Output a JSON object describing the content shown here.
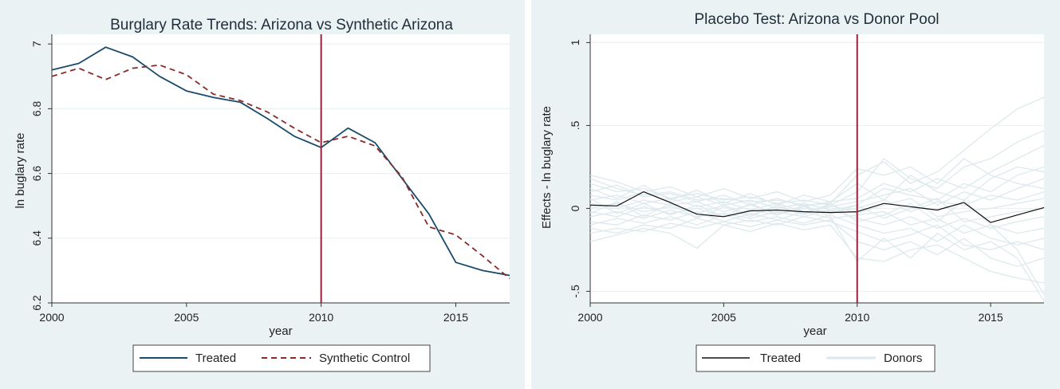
{
  "chart_data": [
    {
      "type": "line",
      "title": "Burglary Rate Trends: Arizona vs Synthetic Arizona",
      "xlabel": "year",
      "ylabel": "ln buglary rate",
      "xlim": [
        2000,
        2017
      ],
      "ylim": [
        6.2,
        7.03
      ],
      "xticks": [
        2000,
        2005,
        2010,
        2015
      ],
      "yticks": [
        6.2,
        6.4,
        6.6,
        6.8,
        7
      ],
      "ytick_labels": [
        "6.2",
        "6.4",
        "6.6",
        "6.8",
        "7"
      ],
      "grid": true,
      "vline": 2010,
      "legend_position": "bottom",
      "x": [
        2000,
        2001,
        2002,
        2003,
        2004,
        2005,
        2006,
        2007,
        2008,
        2009,
        2010,
        2011,
        2012,
        2013,
        2014,
        2015,
        2016,
        2017
      ],
      "series": [
        {
          "name": "Treated",
          "style": "solid",
          "color": "#1a4a6b",
          "values": [
            6.92,
            6.94,
            6.99,
            6.96,
            6.9,
            6.855,
            6.835,
            6.82,
            6.77,
            6.715,
            6.68,
            6.74,
            6.695,
            6.585,
            6.475,
            6.325,
            6.3,
            6.285
          ]
        },
        {
          "name": "Synthetic Control",
          "style": "dashed",
          "color": "#8b2a2a",
          "values": [
            6.9,
            6.925,
            6.89,
            6.925,
            6.935,
            6.905,
            6.845,
            6.825,
            6.79,
            6.74,
            6.695,
            6.715,
            6.685,
            6.59,
            6.435,
            6.41,
            6.345,
            6.275
          ]
        }
      ]
    },
    {
      "type": "line",
      "title": "Placebo Test: Arizona vs Donor Pool",
      "xlabel": "year",
      "ylabel": "Effects - ln buglary rate",
      "xlim": [
        2000,
        2017
      ],
      "ylim": [
        -0.57,
        1.05
      ],
      "xticks": [
        2000,
        2005,
        2010,
        2015
      ],
      "yticks": [
        -0.5,
        0,
        0.5,
        1
      ],
      "ytick_labels": [
        "-.5",
        "0",
        ".5",
        "1"
      ],
      "grid": true,
      "vline": 2010,
      "legend_position": "bottom",
      "x": [
        2000,
        2001,
        2002,
        2003,
        2004,
        2005,
        2006,
        2007,
        2008,
        2009,
        2010,
        2011,
        2012,
        2013,
        2014,
        2015,
        2016,
        2017
      ],
      "series": [
        {
          "name": "Treated",
          "style": "solid",
          "color": "#111111",
          "values": [
            0.02,
            0.015,
            0.1,
            0.035,
            -0.035,
            -0.05,
            -0.015,
            -0.01,
            -0.02,
            -0.025,
            -0.02,
            0.03,
            0.01,
            -0.01,
            0.035,
            -0.085,
            -0.04,
            0.005
          ]
        },
        {
          "name": "Donors",
          "style": "solid",
          "color": "#dde9ec",
          "lines": [
            [
              0.18,
              0.12,
              0.08,
              0.1,
              0.05,
              0.06,
              0.04,
              0.05,
              0.02,
              0.03,
              0.2,
              0.28,
              0.15,
              0.22,
              0.35,
              0.48,
              0.6,
              0.67
            ],
            [
              0.15,
              0.1,
              0.12,
              0.06,
              0.09,
              0.05,
              0.07,
              0.03,
              0.05,
              0.02,
              0.1,
              0.3,
              0.18,
              0.12,
              0.25,
              0.3,
              0.4,
              0.47
            ],
            [
              0.1,
              0.14,
              0.07,
              0.09,
              0.04,
              0.08,
              0.02,
              0.06,
              0.01,
              0.04,
              0.06,
              0.15,
              0.1,
              0.18,
              0.12,
              0.22,
              0.3,
              0.38
            ],
            [
              0.08,
              0.05,
              0.1,
              0.04,
              0.07,
              0.02,
              0.05,
              0.0,
              0.03,
              -0.01,
              0.02,
              0.12,
              0.08,
              0.05,
              0.15,
              0.1,
              0.2,
              0.25
            ],
            [
              0.05,
              0.08,
              0.03,
              0.06,
              0.01,
              0.04,
              -0.01,
              0.03,
              -0.02,
              0.01,
              0.04,
              0.08,
              0.12,
              0.02,
              0.1,
              0.05,
              0.12,
              0.18
            ],
            [
              0.03,
              0.0,
              0.05,
              0.02,
              0.04,
              -0.02,
              0.02,
              -0.03,
              0.0,
              -0.02,
              0.0,
              0.05,
              -0.02,
              0.04,
              0.02,
              0.08,
              0.05,
              0.1
            ],
            [
              0.0,
              0.03,
              -0.02,
              0.01,
              -0.03,
              0.02,
              -0.04,
              0.01,
              -0.03,
              0.02,
              -0.03,
              0.02,
              0.06,
              -0.05,
              -0.02,
              0.0,
              0.03,
              0.06
            ],
            [
              -0.02,
              -0.05,
              0.01,
              -0.03,
              0.0,
              -0.05,
              -0.01,
              -0.04,
              0.01,
              -0.03,
              0.02,
              -0.06,
              0.0,
              0.06,
              -0.08,
              -0.05,
              -0.02,
              0.0
            ],
            [
              -0.05,
              -0.02,
              -0.06,
              -0.01,
              -0.05,
              -0.03,
              -0.06,
              -0.02,
              -0.05,
              -0.01,
              -0.06,
              -0.1,
              -0.05,
              -0.12,
              -0.06,
              -0.12,
              -0.08,
              -0.05
            ],
            [
              -0.08,
              -0.1,
              -0.04,
              -0.07,
              -0.02,
              -0.08,
              -0.03,
              -0.07,
              -0.02,
              -0.06,
              -0.04,
              -0.02,
              -0.1,
              -0.06,
              -0.15,
              -0.1,
              -0.15,
              -0.12
            ],
            [
              -0.1,
              -0.06,
              -0.09,
              -0.05,
              -0.1,
              -0.04,
              -0.08,
              -0.05,
              -0.09,
              -0.04,
              -0.1,
              -0.15,
              -0.12,
              -0.2,
              -0.1,
              -0.18,
              -0.22,
              -0.18
            ],
            [
              -0.12,
              -0.15,
              -0.1,
              -0.12,
              -0.06,
              -0.1,
              -0.07,
              -0.1,
              -0.05,
              -0.08,
              -0.14,
              -0.2,
              -0.16,
              -0.1,
              -0.22,
              -0.25,
              -0.2,
              -0.25
            ],
            [
              -0.15,
              -0.12,
              -0.14,
              -0.09,
              -0.12,
              -0.08,
              -0.11,
              -0.07,
              -0.1,
              -0.07,
              -0.2,
              -0.25,
              -0.2,
              -0.28,
              -0.18,
              -0.3,
              -0.35,
              -0.3
            ],
            [
              -0.2,
              -0.16,
              -0.12,
              -0.15,
              -0.24,
              -0.1,
              -0.14,
              -0.09,
              -0.13,
              -0.1,
              -0.3,
              -0.32,
              -0.25,
              -0.22,
              -0.3,
              -0.38,
              -0.42,
              -0.45
            ],
            [
              0.12,
              0.06,
              0.14,
              0.05,
              0.11,
              0.03,
              0.09,
              0.02,
              0.08,
              0.04,
              0.15,
              0.05,
              0.2,
              0.1,
              0.05,
              0.18,
              0.25,
              0.22
            ],
            [
              0.2,
              0.16,
              0.1,
              0.13,
              0.07,
              0.12,
              0.06,
              0.1,
              0.04,
              0.08,
              0.24,
              0.2,
              0.25,
              0.15,
              0.3,
              0.2,
              0.15,
              0.12
            ],
            [
              -0.03,
              0.04,
              -0.05,
              0.03,
              -0.06,
              0.01,
              -0.05,
              0.02,
              -0.04,
              0.03,
              -0.08,
              -0.04,
              0.03,
              -0.08,
              0.05,
              -0.1,
              -0.25,
              -0.52
            ],
            [
              0.06,
              -0.03,
              0.03,
              -0.04,
              0.02,
              -0.05,
              0.03,
              -0.04,
              0.02,
              -0.05,
              -0.32,
              -0.18,
              -0.3,
              -0.15,
              -0.25,
              -0.2,
              -0.3,
              -0.56
            ]
          ]
        }
      ]
    }
  ]
}
